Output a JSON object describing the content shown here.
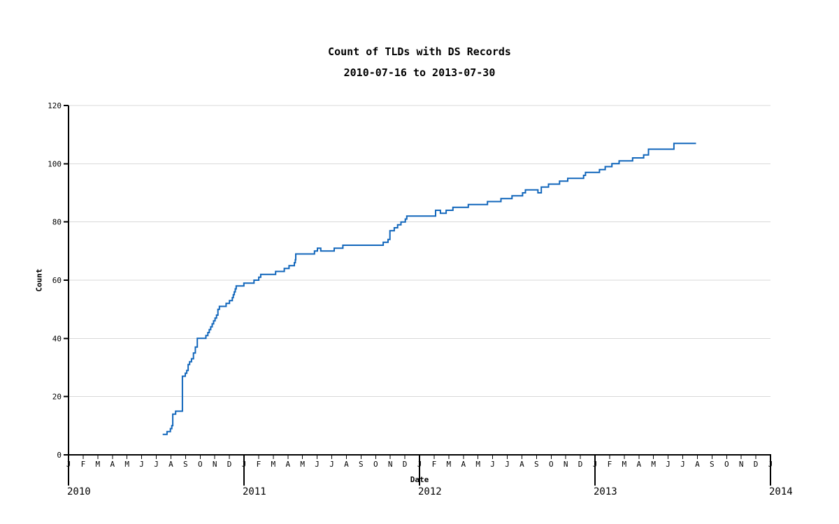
{
  "chart": {
    "title": "Count of TLDs with DS Records",
    "subtitle": "2010-07-16 to 2013-07-30",
    "x_axis_label": "Date",
    "y_axis_label": "Count",
    "line_color": "#1166bb",
    "grid_color": "#d9d9d9",
    "axis_color": "#000000",
    "text_color": "#000000"
  },
  "chart_data": {
    "type": "line",
    "line_style": "step-after",
    "title": "Count of TLDs with DS Records",
    "subtitle": "2010-07-16 to 2013-07-30",
    "xlabel": "Date",
    "ylabel": "Count",
    "x_range": [
      "2010-01-01",
      "2014-01-01"
    ],
    "ylim": [
      0,
      120
    ],
    "y_ticks": [
      0,
      20,
      40,
      60,
      80,
      100,
      120
    ],
    "x_month_letters": [
      "J",
      "F",
      "M",
      "A",
      "M",
      "J",
      "J",
      "A",
      "S",
      "O",
      "N",
      "D"
    ],
    "x_year_labels": [
      "2010",
      "2011",
      "2012",
      "2013",
      "2014"
    ],
    "grid": true,
    "legend": false,
    "series_name": "TLDs with DS records",
    "points": [
      [
        "2010-07-16",
        7
      ],
      [
        "2010-07-25",
        8
      ],
      [
        "2010-08-01",
        9
      ],
      [
        "2010-08-04",
        10
      ],
      [
        "2010-08-06",
        14
      ],
      [
        "2010-08-12",
        15
      ],
      [
        "2010-08-26",
        27
      ],
      [
        "2010-09-01",
        28
      ],
      [
        "2010-09-04",
        29
      ],
      [
        "2010-09-07",
        31
      ],
      [
        "2010-09-10",
        32
      ],
      [
        "2010-09-14",
        33
      ],
      [
        "2010-09-18",
        35
      ],
      [
        "2010-09-22",
        37
      ],
      [
        "2010-09-26",
        40
      ],
      [
        "2010-10-14",
        41
      ],
      [
        "2010-10-18",
        42
      ],
      [
        "2010-10-21",
        43
      ],
      [
        "2010-10-24",
        44
      ],
      [
        "2010-10-27",
        45
      ],
      [
        "2010-10-30",
        46
      ],
      [
        "2010-11-02",
        47
      ],
      [
        "2010-11-05",
        48
      ],
      [
        "2010-11-08",
        50
      ],
      [
        "2010-11-11",
        51
      ],
      [
        "2010-11-25",
        52
      ],
      [
        "2010-12-02",
        53
      ],
      [
        "2010-12-08",
        54
      ],
      [
        "2010-12-10",
        55
      ],
      [
        "2010-12-12",
        56
      ],
      [
        "2010-12-14",
        57
      ],
      [
        "2010-12-16",
        58
      ],
      [
        "2011-01-01",
        59
      ],
      [
        "2011-01-22",
        60
      ],
      [
        "2011-02-01",
        61
      ],
      [
        "2011-02-05",
        62
      ],
      [
        "2011-03-08",
        63
      ],
      [
        "2011-03-26",
        64
      ],
      [
        "2011-04-05",
        65
      ],
      [
        "2011-04-16",
        66
      ],
      [
        "2011-04-18",
        67
      ],
      [
        "2011-04-19",
        69
      ],
      [
        "2011-05-28",
        70
      ],
      [
        "2011-06-03",
        71
      ],
      [
        "2011-06-10",
        70
      ],
      [
        "2011-07-08",
        71
      ],
      [
        "2011-07-26",
        72
      ],
      [
        "2011-10-18",
        73
      ],
      [
        "2011-10-28",
        74
      ],
      [
        "2011-11-01",
        77
      ],
      [
        "2011-11-10",
        78
      ],
      [
        "2011-11-17",
        79
      ],
      [
        "2011-11-24",
        80
      ],
      [
        "2011-12-03",
        81
      ],
      [
        "2011-12-06",
        82
      ],
      [
        "2012-02-04",
        84
      ],
      [
        "2012-02-14",
        83
      ],
      [
        "2012-02-26",
        84
      ],
      [
        "2012-03-11",
        85
      ],
      [
        "2012-04-12",
        86
      ],
      [
        "2012-05-22",
        87
      ],
      [
        "2012-06-19",
        88
      ],
      [
        "2012-07-12",
        89
      ],
      [
        "2012-08-03",
        90
      ],
      [
        "2012-08-09",
        91
      ],
      [
        "2012-09-04",
        90
      ],
      [
        "2012-09-11",
        92
      ],
      [
        "2012-09-26",
        93
      ],
      [
        "2012-10-19",
        94
      ],
      [
        "2012-11-05",
        95
      ],
      [
        "2012-12-08",
        96
      ],
      [
        "2012-12-12",
        97
      ],
      [
        "2013-01-10",
        98
      ],
      [
        "2013-01-22",
        99
      ],
      [
        "2013-02-05",
        100
      ],
      [
        "2013-02-20",
        101
      ],
      [
        "2013-03-20",
        102
      ],
      [
        "2013-04-12",
        103
      ],
      [
        "2013-04-22",
        105
      ],
      [
        "2013-06-14",
        107
      ],
      [
        "2013-07-30",
        107
      ]
    ]
  }
}
